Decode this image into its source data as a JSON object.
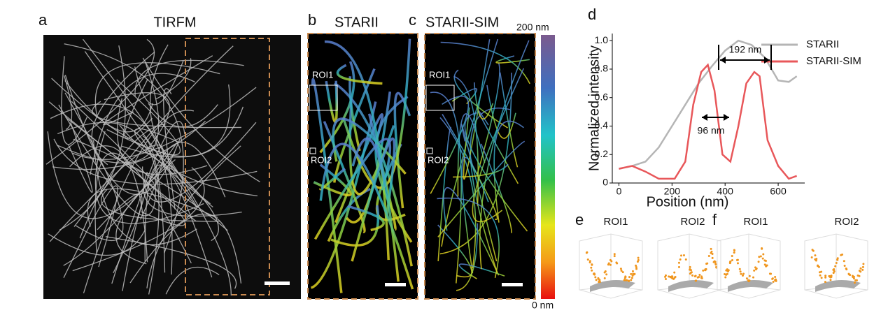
{
  "panels": {
    "a": {
      "letter": "a",
      "title": "TIRFM"
    },
    "b": {
      "letter": "b",
      "title": "STARII",
      "roi1": "ROI1",
      "roi2": "ROI2"
    },
    "c": {
      "letter": "c",
      "title": "STARII-SIM",
      "roi1": "ROI1",
      "roi2": "ROI2"
    },
    "colorbar": {
      "top": "200 nm",
      "bottom": "0 nm"
    },
    "d": {
      "letter": "d"
    },
    "e": {
      "letter": "e",
      "roi1": "ROI1",
      "roi2": "ROI2"
    },
    "f": {
      "letter": "f",
      "roi1": "ROI1",
      "roi2": "ROI2"
    }
  },
  "chart_data": {
    "type": "line",
    "xlabel": "Position (nm)",
    "ylabel": "Normalized intensity",
    "xlim": [
      -25,
      700
    ],
    "ylim": [
      0,
      1.05
    ],
    "xticks": [
      0,
      200,
      400,
      600
    ],
    "yticks": [
      0,
      {
        "value": 0.2,
        "label": "0.2"
      },
      {
        "value": 0.4,
        "label": "0.4"
      },
      {
        "value": 0.6,
        "label": "0.6"
      },
      {
        "value": 0.8,
        "label": "0.8"
      },
      {
        "value": 1,
        "label": "1.0"
      }
    ],
    "legend": "top-right",
    "annotations": [
      "192 nm",
      "96 nm"
    ],
    "series": [
      {
        "name": "STARII",
        "color": "#b5b5b5",
        "x": [
          0,
          50,
          100,
          150,
          200,
          250,
          300,
          350,
          400,
          450,
          500,
          550,
          600,
          640,
          670
        ],
        "values": [
          0.1,
          0.12,
          0.15,
          0.25,
          0.4,
          0.55,
          0.7,
          0.82,
          0.93,
          1.0,
          0.97,
          0.88,
          0.72,
          0.71,
          0.75
        ]
      },
      {
        "name": "STARII-SIM",
        "color": "#e8575a",
        "x": [
          0,
          50,
          100,
          150,
          210,
          250,
          280,
          310,
          335,
          360,
          390,
          420,
          450,
          480,
          510,
          530,
          560,
          600,
          640,
          670
        ],
        "values": [
          0.1,
          0.12,
          0.08,
          0.03,
          0.03,
          0.15,
          0.55,
          0.78,
          0.83,
          0.65,
          0.2,
          0.15,
          0.4,
          0.7,
          0.78,
          0.75,
          0.3,
          0.12,
          0.03,
          0.05
        ]
      }
    ]
  }
}
